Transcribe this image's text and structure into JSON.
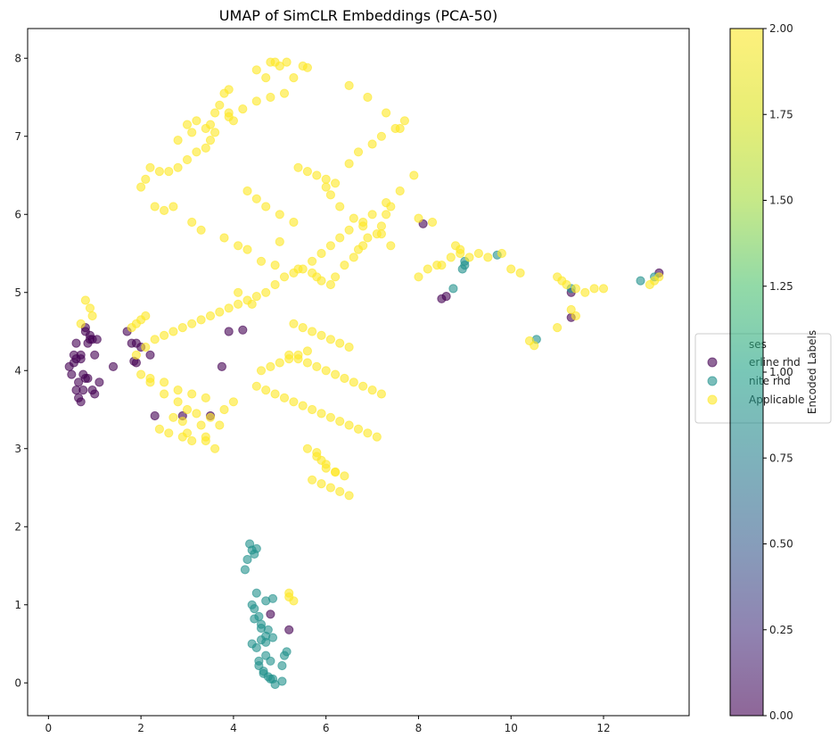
{
  "chart_data": {
    "type": "scatter",
    "title": "UMAP of SimCLR Embeddings (PCA-50)",
    "xlabel": "",
    "ylabel": "",
    "xlim": [
      -0.45,
      13.85
    ],
    "ylim": [
      -0.42,
      8.38
    ],
    "xticks": [
      0,
      2,
      4,
      6,
      8,
      10,
      12
    ],
    "yticks": [
      0,
      1,
      2,
      3,
      4,
      5,
      6,
      7,
      8
    ],
    "colorbar": {
      "label": "Encoded Labels",
      "range": [
        0.0,
        2.0
      ],
      "ticks": [
        "0.00",
        "0.25",
        "0.50",
        "0.75",
        "1.00",
        "1.25",
        "1.50",
        "1.75",
        "2.00"
      ],
      "colormap": "viridis"
    },
    "legend": {
      "placement": "right",
      "title": "ses",
      "entries": [
        {
          "label": "erline rhd",
          "color": "#440154"
        },
        {
          "label": "nite rhd",
          "color": "#21918c"
        },
        {
          "label": "Applicable",
          "color": "#fde725"
        }
      ]
    },
    "series": [
      {
        "color": "#440154",
        "x": [
          0.45,
          0.5,
          0.55,
          0.6,
          0.65,
          0.7,
          0.75,
          0.8,
          0.85,
          0.9,
          0.95,
          1.0,
          1.05,
          1.1,
          0.6,
          0.7,
          0.8,
          0.9,
          1.0,
          0.55,
          0.65,
          0.75,
          0.85,
          0.95,
          0.6,
          0.7,
          0.8,
          1.4,
          1.7,
          1.8,
          1.85,
          1.9,
          2.0,
          2.2,
          2.3,
          2.9,
          3.5,
          3.75,
          3.9,
          4.2,
          1.9,
          8.1,
          8.6,
          8.5,
          11.3,
          11.3,
          13.2,
          4.8,
          5.2
        ],
        "y": [
          4.05,
          3.95,
          4.1,
          3.75,
          3.85,
          3.6,
          3.75,
          3.9,
          4.35,
          4.45,
          4.4,
          4.2,
          4.4,
          3.85,
          4.15,
          4.2,
          4.5,
          4.4,
          3.7,
          4.2,
          3.65,
          3.95,
          3.9,
          3.75,
          4.35,
          4.15,
          4.55,
          4.05,
          4.5,
          4.35,
          4.12,
          4.1,
          4.3,
          4.2,
          3.42,
          3.42,
          3.42,
          4.05,
          4.5,
          4.52,
          4.35,
          5.88,
          4.95,
          4.92,
          5.0,
          4.68,
          5.25,
          0.88,
          0.68
        ]
      },
      {
        "color": "#21918c",
        "x": [
          4.35,
          4.4,
          4.3,
          4.45,
          4.5,
          4.25,
          4.4,
          4.5,
          4.55,
          4.7,
          4.85,
          4.4,
          4.5,
          4.6,
          4.7,
          4.8,
          4.6,
          4.7,
          4.8,
          4.45,
          4.55,
          4.65,
          4.75,
          4.85,
          4.9,
          5.05,
          5.1,
          4.45,
          4.6,
          4.75,
          4.85,
          4.7,
          5.15,
          4.55,
          4.65,
          5.05,
          8.75,
          9.0,
          9.0,
          8.95,
          9.7,
          10.55,
          11.3,
          12.8,
          13.1
        ],
        "y": [
          1.78,
          1.7,
          1.58,
          1.65,
          1.72,
          1.45,
          1.0,
          1.15,
          0.85,
          1.05,
          1.08,
          0.5,
          0.45,
          0.7,
          0.35,
          0.28,
          0.55,
          0.6,
          0.05,
          0.95,
          0.22,
          0.15,
          0.08,
          0.05,
          -0.02,
          0.22,
          0.35,
          0.82,
          0.75,
          0.68,
          0.58,
          0.52,
          0.4,
          0.28,
          0.12,
          0.02,
          5.05,
          5.4,
          5.35,
          5.3,
          5.48,
          4.4,
          5.05,
          5.15,
          5.2
        ]
      },
      {
        "color": "#fde725",
        "x": [
          4.8,
          4.9,
          5.0,
          5.15,
          5.3,
          5.5,
          5.6,
          4.5,
          4.7,
          3.9,
          3.8,
          3.7,
          3.9,
          4.0,
          3.6,
          3.5,
          3.4,
          3.2,
          3.0,
          2.8,
          2.6,
          2.4,
          2.2,
          2.1,
          2.0,
          2.3,
          2.5,
          2.7,
          3.1,
          3.3,
          3.8,
          4.1,
          4.3,
          4.6,
          4.9,
          5.4,
          5.7,
          5.8,
          5.9,
          6.1,
          6.2,
          6.4,
          6.6,
          6.7,
          6.8,
          6.9,
          7.1,
          7.2,
          7.3,
          7.4,
          6.5,
          6.7,
          7.0,
          7.2,
          7.5,
          7.7,
          7.9,
          7.6,
          7.3,
          7.0,
          6.8,
          6.5,
          6.3,
          6.1,
          5.9,
          5.7,
          5.5,
          5.3,
          5.1,
          4.9,
          4.7,
          4.5,
          4.3,
          4.1,
          3.9,
          3.7,
          3.5,
          3.3,
          3.1,
          2.9,
          2.7,
          2.5,
          2.3,
          2.1,
          1.9,
          2.0,
          2.2,
          2.5,
          2.8,
          3.0,
          3.2,
          3.5,
          3.8,
          4.0,
          2.4,
          2.6,
          2.9,
          3.1,
          3.4,
          3.7,
          2.2,
          2.5,
          2.8,
          3.1,
          3.4,
          4.5,
          4.7,
          4.9,
          5.1,
          5.3,
          5.5,
          5.7,
          5.9,
          6.1,
          6.3,
          6.5,
          6.7,
          6.9,
          7.1,
          5.2,
          5.4,
          5.6,
          5.8,
          6.0,
          6.2,
          6.4,
          6.6,
          6.8,
          7.0,
          7.2,
          5.3,
          5.5,
          5.7,
          5.9,
          6.1,
          6.3,
          6.5,
          5.4,
          5.6,
          5.8,
          6.0,
          6.2,
          5.8,
          5.9,
          6.0,
          6.2,
          6.4,
          5.7,
          5.9,
          6.1,
          6.3,
          6.5,
          5.6,
          5.8,
          6.0,
          6.2,
          4.6,
          4.8,
          5.0,
          5.2,
          5.4,
          5.6,
          3.0,
          3.2,
          3.4,
          3.6,
          2.8,
          3.1,
          3.5,
          3.9,
          4.2,
          4.5,
          4.8,
          5.1,
          1.8,
          1.9,
          2.0,
          2.1,
          0.8,
          0.9,
          0.95,
          0.7,
          8.0,
          8.2,
          8.4,
          8.7,
          8.9,
          9.1,
          9.3,
          9.5,
          9.8,
          10.0,
          10.2,
          11.0,
          11.1,
          11.2,
          11.4,
          11.6,
          11.8,
          12.0,
          13.0,
          13.1,
          13.2,
          10.4,
          10.5,
          11.0,
          11.3,
          11.4,
          8.0,
          8.3,
          8.8,
          8.5,
          8.9,
          5.2,
          5.3,
          5.2,
          5.0,
          6.0,
          6.1,
          6.3,
          6.6,
          6.8,
          7.2,
          7.4,
          6.5,
          6.9,
          7.3,
          7.6,
          4.3,
          4.5,
          4.7,
          5.0,
          5.3,
          3.4,
          3.6,
          3.0,
          3.3,
          2.7,
          2.9,
          4.1,
          4.4
        ],
        "y": [
          7.95,
          7.95,
          7.9,
          7.95,
          7.75,
          7.9,
          7.88,
          7.85,
          7.75,
          7.6,
          7.55,
          7.4,
          7.3,
          7.2,
          7.05,
          6.95,
          6.85,
          6.8,
          6.7,
          6.6,
          6.55,
          6.55,
          6.6,
          6.45,
          6.35,
          6.1,
          6.05,
          6.1,
          5.9,
          5.8,
          5.7,
          5.6,
          5.55,
          5.4,
          5.35,
          5.3,
          5.25,
          5.2,
          5.15,
          5.1,
          5.2,
          5.35,
          5.45,
          5.55,
          5.6,
          5.7,
          5.75,
          5.85,
          6.0,
          6.1,
          6.65,
          6.8,
          6.9,
          7.0,
          7.1,
          7.2,
          6.5,
          6.3,
          6.15,
          6.0,
          5.9,
          5.8,
          5.7,
          5.6,
          5.5,
          5.4,
          5.3,
          5.25,
          5.2,
          5.1,
          5.0,
          4.95,
          4.9,
          4.85,
          4.8,
          4.75,
          4.7,
          4.65,
          4.6,
          4.55,
          4.5,
          4.45,
          4.4,
          4.3,
          4.2,
          3.95,
          3.85,
          3.7,
          3.6,
          3.5,
          3.45,
          3.4,
          3.5,
          3.6,
          3.25,
          3.2,
          3.15,
          3.1,
          3.15,
          3.3,
          3.9,
          3.85,
          3.75,
          3.7,
          3.65,
          3.8,
          3.75,
          3.7,
          3.65,
          3.6,
          3.55,
          3.5,
          3.45,
          3.4,
          3.35,
          3.3,
          3.25,
          3.2,
          3.15,
          4.2,
          4.15,
          4.1,
          4.05,
          4.0,
          3.95,
          3.9,
          3.85,
          3.8,
          3.75,
          3.7,
          4.6,
          4.55,
          4.5,
          4.45,
          4.4,
          4.35,
          4.3,
          6.6,
          6.55,
          6.5,
          6.45,
          6.4,
          2.95,
          2.85,
          2.75,
          2.7,
          2.65,
          2.6,
          2.55,
          2.5,
          2.45,
          2.4,
          3.0,
          2.9,
          2.8,
          2.7,
          4.0,
          4.05,
          4.1,
          4.15,
          4.2,
          4.25,
          7.15,
          7.2,
          7.1,
          7.3,
          6.95,
          7.05,
          7.15,
          7.25,
          7.35,
          7.45,
          7.5,
          7.55,
          4.55,
          4.6,
          4.65,
          4.7,
          4.9,
          4.8,
          4.7,
          4.6,
          5.2,
          5.3,
          5.35,
          5.45,
          5.5,
          5.45,
          5.5,
          5.45,
          5.5,
          5.3,
          5.25,
          5.2,
          5.15,
          5.1,
          5.05,
          5.0,
          5.05,
          5.05,
          5.1,
          5.15,
          5.2,
          4.38,
          4.32,
          4.55,
          4.78,
          4.7,
          5.95,
          5.9,
          5.6,
          5.35,
          5.55,
          1.15,
          1.05,
          1.1,
          5.65,
          6.35,
          6.25,
          6.1,
          5.95,
          5.85,
          5.75,
          5.6,
          7.65,
          7.5,
          7.3,
          7.1,
          6.3,
          6.2,
          6.1,
          6.0,
          5.9,
          3.1,
          3.0,
          3.2,
          3.3,
          3.4,
          3.35,
          5.0,
          4.85
        ]
      }
    ]
  }
}
